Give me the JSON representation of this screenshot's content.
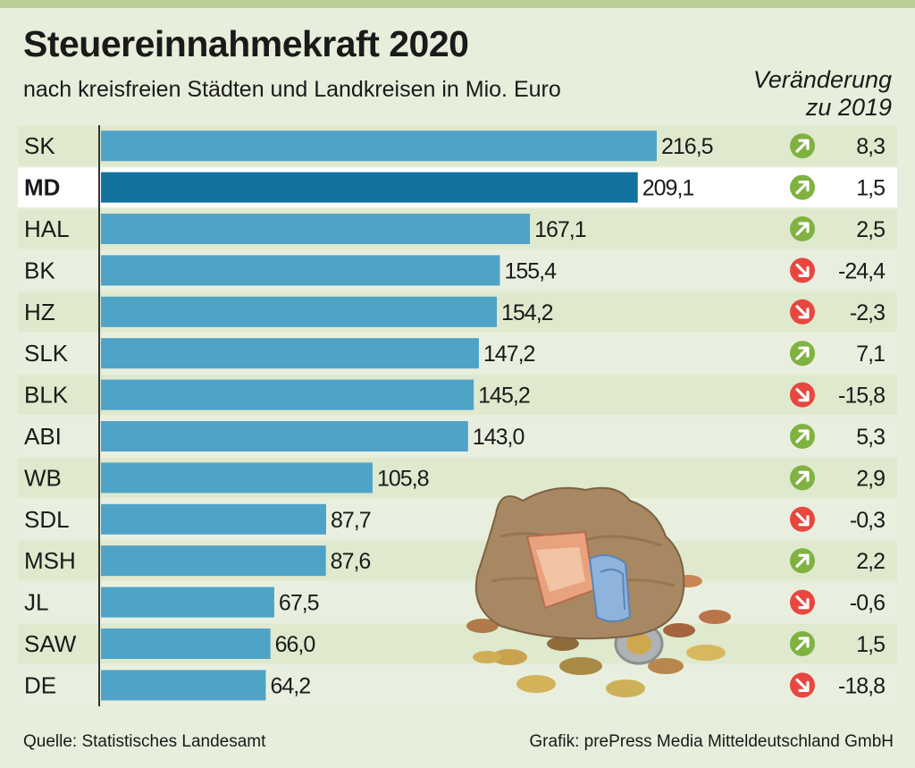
{
  "title": "Steuereinnahmekraft 2020",
  "subtitle": "nach kreisfreien Städten und Landkreisen in Mio. Euro",
  "change_header_line1": "Veränderung",
  "change_header_line2": "zu 2019",
  "source": "Quelle: Statistisches Landesamt",
  "credit": "Grafik: prePress Media Mitteldeutschland GmbH",
  "colors": {
    "bar": "#4fa3c7",
    "bar_highlight": "#13739f",
    "row_light": "#dfe9cd",
    "row_alt": "#e9efdf",
    "row_highlight": "#ffffff",
    "up": "#7fb241",
    "down": "#e8473f"
  },
  "chart_data": {
    "type": "bar",
    "orientation": "horizontal",
    "highlight": "MD",
    "categories": [
      "SK",
      "MD",
      "HAL",
      "BK",
      "HZ",
      "SLK",
      "BLK",
      "ABI",
      "WB",
      "SDL",
      "MSH",
      "JL",
      "SAW",
      "DE"
    ],
    "values": [
      216.5,
      209.1,
      167.1,
      155.4,
      154.2,
      147.2,
      145.2,
      143.0,
      105.8,
      87.7,
      87.6,
      67.5,
      66.0,
      64.2
    ],
    "value_labels": [
      "216,5",
      "209,1",
      "167,1",
      "155,4",
      "154,2",
      "147,2",
      "145,2",
      "143,0",
      "105,8",
      "87,7",
      "87,6",
      "67,5",
      "66,0",
      "64,2"
    ],
    "change_values": [
      8.3,
      1.5,
      2.5,
      -24.4,
      -2.3,
      7.1,
      -15.8,
      5.3,
      2.9,
      -0.3,
      2.2,
      -0.6,
      1.5,
      -18.8
    ],
    "change_labels": [
      "8,3",
      "1,5",
      "2,5",
      "-24,4",
      "-2,3",
      "7,1",
      "-15,8",
      "5,3",
      "2,9",
      "-0,3",
      "2,2",
      "-0,6",
      "1,5",
      "-18,8"
    ],
    "xlim": [
      0,
      216.5
    ],
    "grid": false,
    "legend": "none"
  }
}
